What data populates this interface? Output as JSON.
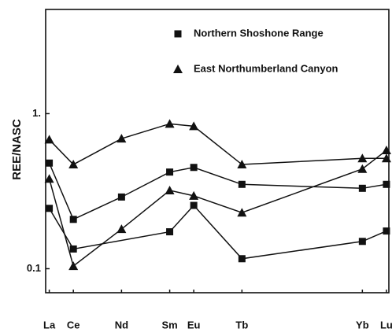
{
  "chart_data": {
    "type": "line",
    "y_label": "REE/NASC",
    "log_y": true,
    "xlim": [
      56.85,
      71.1
    ],
    "ylim": [
      0.07,
      4.7
    ],
    "xticks": [
      {
        "value": 57,
        "label": "La"
      },
      {
        "value": 58,
        "label": "Ce"
      },
      {
        "value": 60,
        "label": "Nd"
      },
      {
        "value": 62,
        "label": "Sm"
      },
      {
        "value": 63,
        "label": "Eu"
      },
      {
        "value": 65,
        "label": "Tb"
      },
      {
        "value": 70,
        "label": "Yb"
      },
      {
        "value": 71,
        "label": "Lu"
      }
    ],
    "yticks": [
      {
        "value": 1,
        "label": "1."
      },
      0.1
    ],
    "series": [
      {
        "name": "Northern Shoshone Range",
        "marker": "square",
        "color": "#111111",
        "lines": [
          {
            "x": [
              57,
              58,
              60,
              62,
              63,
              65,
              70,
              71
            ],
            "values": [
              0.48,
              0.208,
              0.29,
              0.42,
              0.45,
              0.35,
              0.33,
              0.35
            ]
          },
          {
            "x": [
              57,
              58,
              62,
              63,
              65,
              70,
              71
            ],
            "values": [
              0.245,
              0.134,
              0.173,
              0.256,
              0.116,
              0.15,
              0.175
            ]
          }
        ]
      },
      {
        "name": "East Northumberland Canyon",
        "marker": "triangle",
        "color": "#111111",
        "lines": [
          {
            "x": [
              57,
              58,
              60,
              62,
              63,
              65,
              70,
              71
            ],
            "values": [
              0.68,
              0.47,
              0.69,
              0.86,
              0.83,
              0.47,
              0.515,
              0.515
            ]
          },
          {
            "x": [
              57,
              58,
              60,
              62,
              63,
              65,
              70,
              71
            ],
            "values": [
              0.38,
              0.104,
              0.18,
              0.32,
              0.295,
              0.23,
              0.44,
              0.58
            ]
          }
        ]
      }
    ]
  }
}
